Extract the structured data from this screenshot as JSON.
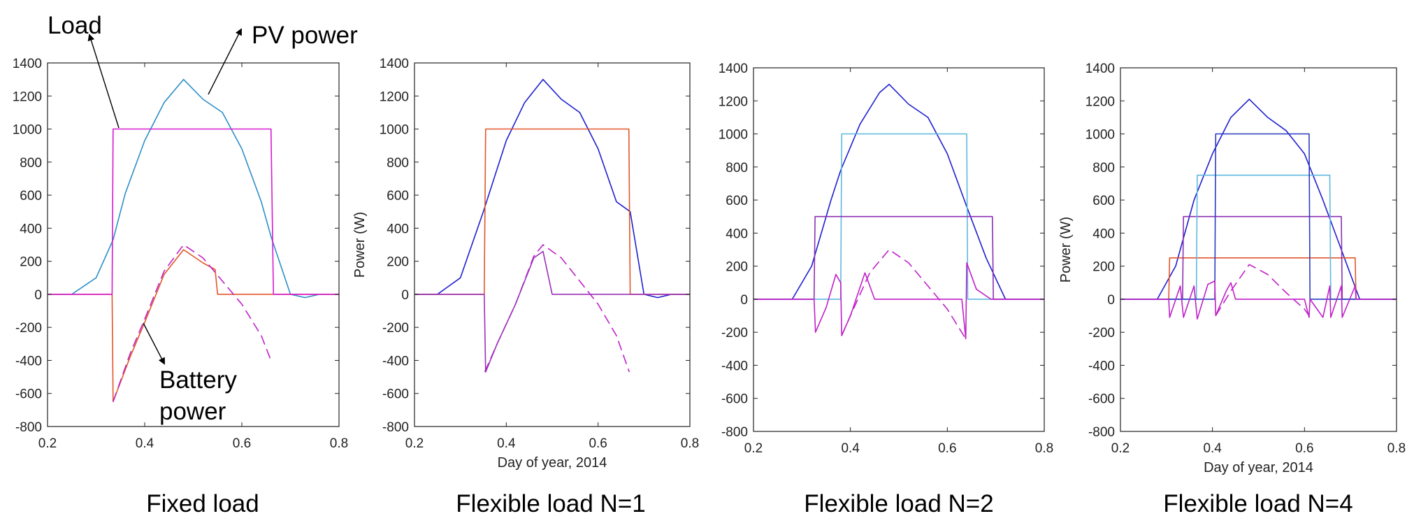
{
  "chart_data": [
    {
      "type": "line",
      "caption": "Fixed load",
      "xlabel": "",
      "ylabel": "",
      "xlim": [
        0.2,
        0.8
      ],
      "ylim": [
        -800,
        1400
      ],
      "xticks": [
        "0.2",
        "0.4",
        "0.6",
        "0.8"
      ],
      "yticks": [
        "1400",
        "1200",
        "1000",
        "800",
        "600",
        "400",
        "200",
        "0",
        "-200",
        "-400",
        "-600",
        "-800"
      ],
      "annotations": [
        "Load",
        "PV power",
        "Battery",
        "power"
      ],
      "series": [
        {
          "color": "#2c8fc8",
          "dash": false,
          "x": [
            0.2,
            0.25,
            0.3,
            0.335,
            0.36,
            0.4,
            0.44,
            0.48,
            0.52,
            0.56,
            0.6,
            0.64,
            0.66,
            0.7,
            0.73,
            0.76,
            0.8
          ],
          "y": [
            0,
            0,
            100,
            330,
            610,
            930,
            1160,
            1300,
            1180,
            1100,
            880,
            560,
            350,
            0,
            -20,
            0,
            0
          ]
        },
        {
          "color": "#e2562a",
          "dash": false,
          "x": [
            0.2,
            0.333,
            0.335,
            0.37,
            0.4,
            0.44,
            0.48,
            0.52,
            0.545,
            0.55,
            0.6,
            0.66,
            0.665,
            0.7,
            0.8
          ],
          "y": [
            0,
            0,
            -650,
            -380,
            -170,
            120,
            270,
            190,
            150,
            0,
            0,
            0,
            0,
            0,
            0
          ]
        },
        {
          "color": "#c020c8",
          "dash": true,
          "x": [
            0.335,
            0.37,
            0.4,
            0.44,
            0.48,
            0.52,
            0.56,
            0.6,
            0.64,
            0.66
          ],
          "y": [
            -650,
            -360,
            -150,
            140,
            300,
            220,
            80,
            -60,
            -250,
            -400
          ]
        },
        {
          "color": "#d61ad0",
          "dash": false,
          "x": [
            0.2,
            0.333,
            0.335,
            0.66,
            0.665,
            0.8
          ],
          "y": [
            0,
            0,
            1000,
            1000,
            0,
            0
          ]
        }
      ]
    },
    {
      "type": "line",
      "caption": "Flexible load N=1",
      "xlabel": "Day of year, 2014",
      "ylabel": "Power (W)",
      "xlim": [
        0.2,
        0.8
      ],
      "ylim": [
        -800,
        1400
      ],
      "xticks": [
        "0.2",
        "0.4",
        "0.6",
        "0.8"
      ],
      "yticks": [
        "1400",
        "1200",
        "1000",
        "800",
        "600",
        "400",
        "200",
        "0",
        "-200",
        "-400",
        "-600",
        "-800"
      ],
      "series": [
        {
          "color": "#1f1fd0",
          "dash": false,
          "x": [
            0.2,
            0.25,
            0.3,
            0.35,
            0.4,
            0.44,
            0.48,
            0.52,
            0.56,
            0.6,
            0.64,
            0.67,
            0.7,
            0.73,
            0.76,
            0.8
          ],
          "y": [
            0,
            0,
            100,
            500,
            930,
            1160,
            1300,
            1180,
            1100,
            880,
            560,
            500,
            0,
            -20,
            0,
            0
          ]
        },
        {
          "color": "#e2562a",
          "dash": false,
          "x": [
            0.2,
            0.352,
            0.355,
            0.667,
            0.67,
            0.8
          ],
          "y": [
            0,
            0,
            1000,
            1000,
            0,
            0
          ]
        },
        {
          "color": "#c020c8",
          "dash": true,
          "x": [
            0.353,
            0.38,
            0.42,
            0.46,
            0.48,
            0.52,
            0.56,
            0.6,
            0.64,
            0.668
          ],
          "y": [
            -470,
            -300,
            -60,
            230,
            300,
            220,
            80,
            -60,
            -250,
            -470
          ]
        },
        {
          "color": "#9a30b8",
          "dash": false,
          "x": [
            0.2,
            0.352,
            0.355,
            0.38,
            0.42,
            0.46,
            0.48,
            0.5,
            0.8
          ],
          "y": [
            0,
            0,
            -470,
            -300,
            -60,
            220,
            260,
            0,
            0
          ]
        }
      ]
    },
    {
      "type": "line",
      "caption": "Flexible load N=2",
      "xlabel": "",
      "ylabel": "",
      "xlim": [
        0.2,
        0.8
      ],
      "ylim": [
        -800,
        1400
      ],
      "xticks": [
        "0.2",
        "0.4",
        "0.6",
        "0.8"
      ],
      "yticks": [
        "1400",
        "1200",
        "1000",
        "800",
        "600",
        "400",
        "200",
        "0",
        "-200",
        "-400",
        "-600",
        "-800"
      ],
      "series": [
        {
          "color": "#1f1fd0",
          "dash": false,
          "x": [
            0.2,
            0.28,
            0.32,
            0.36,
            0.38,
            0.42,
            0.46,
            0.48,
            0.52,
            0.56,
            0.6,
            0.64,
            0.68,
            0.72,
            0.8
          ],
          "y": [
            0,
            0,
            200,
            600,
            780,
            1060,
            1250,
            1300,
            1180,
            1100,
            880,
            560,
            250,
            0,
            0
          ]
        },
        {
          "color": "#60b8e0",
          "dash": false,
          "x": [
            0.2,
            0.38,
            0.382,
            0.64,
            0.642,
            0.8
          ],
          "y": [
            0,
            0,
            1000,
            1000,
            0,
            0
          ]
        },
        {
          "color": "#8a30b0",
          "dash": false,
          "x": [
            0.2,
            0.325,
            0.327,
            0.693,
            0.695,
            0.8
          ],
          "y": [
            0,
            0,
            500,
            500,
            0,
            0
          ]
        },
        {
          "color": "#c020c8",
          "dash": true,
          "x": [
            0.382,
            0.4,
            0.44,
            0.48,
            0.52,
            0.56,
            0.6,
            0.638
          ],
          "y": [
            -220,
            -100,
            160,
            300,
            220,
            80,
            -60,
            -240
          ]
        },
        {
          "color": "#c020c8",
          "dash": false,
          "x": [
            0.2,
            0.325,
            0.328,
            0.35,
            0.37,
            0.38,
            0.382,
            0.4,
            0.43,
            0.45,
            0.46,
            0.63,
            0.638,
            0.64,
            0.66,
            0.69,
            0.8
          ],
          "y": [
            0,
            0,
            -200,
            -50,
            150,
            100,
            -220,
            -100,
            160,
            0,
            0,
            0,
            -240,
            220,
            60,
            0,
            0
          ]
        }
      ]
    },
    {
      "type": "line",
      "caption": "Flexible load N=4",
      "xlabel": "Day of year, 2014",
      "ylabel": "Power (W)",
      "xlim": [
        0.2,
        0.8
      ],
      "ylim": [
        -800,
        1400
      ],
      "xticks": [
        "0.2",
        "0.4",
        "0.6",
        "0.8"
      ],
      "yticks": [
        "1400",
        "1200",
        "1000",
        "800",
        "600",
        "400",
        "200",
        "0",
        "-200",
        "-400",
        "-600",
        "-800"
      ],
      "series": [
        {
          "color": "#1f1fd0",
          "dash": false,
          "x": [
            0.2,
            0.28,
            0.32,
            0.36,
            0.4,
            0.44,
            0.48,
            0.52,
            0.56,
            0.6,
            0.64,
            0.68,
            0.72,
            0.8
          ],
          "y": [
            0,
            0,
            200,
            600,
            880,
            1100,
            1210,
            1100,
            1020,
            880,
            600,
            300,
            0,
            0
          ]
        },
        {
          "color": "#e2562a",
          "dash": false,
          "x": [
            0.2,
            0.305,
            0.307,
            0.71,
            0.712,
            0.8
          ],
          "y": [
            0,
            0,
            250,
            250,
            0,
            0
          ]
        },
        {
          "color": "#8a30b0",
          "dash": false,
          "x": [
            0.2,
            0.335,
            0.337,
            0.68,
            0.682,
            0.8
          ],
          "y": [
            0,
            0,
            500,
            500,
            0,
            0
          ]
        },
        {
          "color": "#60b8e0",
          "dash": false,
          "x": [
            0.2,
            0.365,
            0.367,
            0.655,
            0.657,
            0.8
          ],
          "y": [
            0,
            0,
            750,
            750,
            0,
            0
          ]
        },
        {
          "color": "#2a3cc0",
          "dash": false,
          "x": [
            0.2,
            0.405,
            0.407,
            0.61,
            0.612,
            0.8
          ],
          "y": [
            0,
            0,
            1000,
            1000,
            0,
            0
          ]
        },
        {
          "color": "#c020c8",
          "dash": true,
          "x": [
            0.407,
            0.44,
            0.48,
            0.52,
            0.56,
            0.6,
            0.61
          ],
          "y": [
            -100,
            50,
            210,
            150,
            40,
            -60,
            -100
          ]
        },
        {
          "color": "#c020c8",
          "dash": false,
          "x": [
            0.2,
            0.305,
            0.307,
            0.33,
            0.337,
            0.36,
            0.367,
            0.39,
            0.405,
            0.407,
            0.43,
            0.44,
            0.45,
            0.6,
            0.61,
            0.612,
            0.64,
            0.655,
            0.657,
            0.68,
            0.682,
            0.71,
            0.712,
            0.8
          ],
          "y": [
            0,
            0,
            -110,
            80,
            -110,
            80,
            -120,
            90,
            110,
            -100,
            50,
            100,
            0,
            0,
            -110,
            0,
            -110,
            80,
            -110,
            80,
            -110,
            80,
            0,
            0
          ]
        }
      ]
    }
  ]
}
